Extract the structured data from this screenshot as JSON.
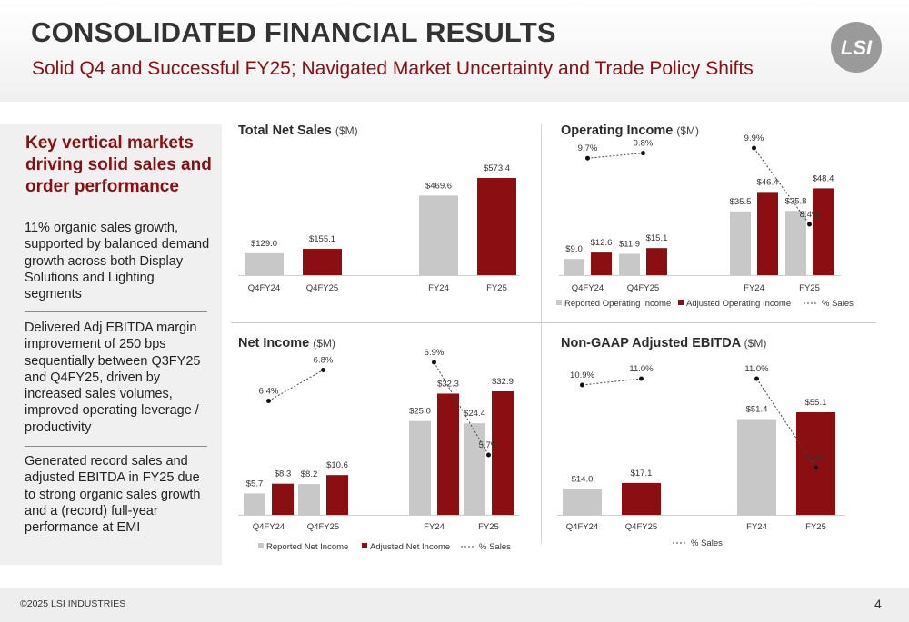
{
  "header": {
    "title": "CONSOLIDATED FINANCIAL RESULTS",
    "subtitle": "Solid Q4 and Successful FY25; Navigated Market Uncertainty and Trade Policy Shifts",
    "logo_text": "LSI"
  },
  "sidebar": {
    "heading": "Key vertical markets driving solid sales and order performance",
    "bullets": [
      "11% organic sales growth, supported by balanced demand growth across both Display Solutions and Lighting segments",
      "Delivered Adj EBITDA margin improvement of 250 bps sequentially between Q3FY25 and Q4FY25, driven by increased sales volumes, improved operating leverage / productivity",
      "Generated record sales and adjusted EBITDA in FY25 due to strong organic sales growth and a (record) full-year performance at EMI"
    ]
  },
  "colors": {
    "reported": "#c8c8c8",
    "adjusted": "#8b0e12",
    "accent": "#8b0e12",
    "label": "#444444"
  },
  "chart_titles": [
    {
      "main": "Total Net Sales",
      "unit": "($M)"
    },
    {
      "main": "Operating Income",
      "unit": "($M)"
    },
    {
      "main": "Net Income",
      "unit": "($M)"
    },
    {
      "main": "Non-GAAP Adjusted EBITDA",
      "unit": "($M)"
    }
  ],
  "chart_data": [
    {
      "type": "bar",
      "title": "Total Net Sales",
      "unit": "($M)",
      "categories": [
        "Q4FY24",
        "Q4FY25",
        "FY24",
        "FY25"
      ],
      "series": [
        {
          "values": [
            129.0,
            155.1,
            469.6,
            573.4
          ]
        }
      ],
      "bar_colors": [
        "reported",
        "adjusted",
        "reported",
        "adjusted"
      ],
      "data_labels": [
        "$129.0",
        "$155.1",
        "$469.6",
        "$573.4"
      ]
    },
    {
      "type": "bar",
      "title": "Operating Income",
      "unit": "($M)",
      "categories": [
        "Q4FY24",
        "Q4FY25",
        "FY24",
        "FY25"
      ],
      "series": [
        {
          "name": "Reported Operating Income",
          "values": [
            9.0,
            11.9,
            35.5,
            35.8
          ],
          "labels": [
            "$9.0",
            "$11.9",
            "$35.5",
            "$35.8"
          ]
        },
        {
          "name": "Adjusted Operating Income",
          "values": [
            12.6,
            15.1,
            46.4,
            48.4
          ],
          "labels": [
            "$12.6",
            "$15.1",
            "$46.4",
            "$48.4"
          ]
        },
        {
          "name": "% Sales",
          "values": [
            9.7,
            9.8,
            9.9,
            8.4
          ],
          "labels": [
            "9.7%",
            "9.8%",
            "9.9%",
            "8.4%"
          ]
        }
      ],
      "legend": [
        "Reported Operating Income",
        "Adjusted Operating Income",
        "% Sales"
      ]
    },
    {
      "type": "bar",
      "title": "Net Income",
      "unit": "($M)",
      "categories": [
        "Q4FY24",
        "Q4FY25",
        "FY24",
        "FY25"
      ],
      "series": [
        {
          "name": "Reported Net Income",
          "values": [
            5.7,
            8.2,
            25.0,
            24.4
          ],
          "labels": [
            "$5.7",
            "$8.2",
            "$25.0",
            "$24.4"
          ]
        },
        {
          "name": "Adjusted Net Income",
          "values": [
            8.3,
            10.6,
            32.3,
            32.9
          ],
          "labels": [
            "$8.3",
            "$10.6",
            "$32.3",
            "$32.9"
          ]
        },
        {
          "name": "% Sales",
          "values": [
            6.4,
            6.8,
            6.9,
            5.7
          ],
          "labels": [
            "6.4%",
            "6.8%",
            "6.9%",
            "5.7%"
          ]
        }
      ],
      "legend": [
        "Reported Net Income",
        "Adjusted Net Income",
        "% Sales"
      ]
    },
    {
      "type": "bar",
      "title": "Non-GAAP Adjusted EBITDA",
      "unit": "($M)",
      "categories": [
        "Q4FY24",
        "Q4FY25",
        "FY24",
        "FY25"
      ],
      "series": [
        {
          "values": [
            14.0,
            17.1,
            51.4,
            55.1
          ],
          "labels": [
            "$14.0",
            "$17.1",
            "$51.4",
            "$55.1"
          ]
        },
        {
          "name": "% Sales",
          "values": [
            10.9,
            11.0,
            11.0,
            9.6
          ],
          "labels": [
            "10.9%",
            "11.0%",
            "11.0%",
            "9.6%"
          ]
        }
      ],
      "bar_colors": [
        "reported",
        "adjusted",
        "reported",
        "adjusted"
      ],
      "legend": [
        "% Sales"
      ]
    }
  ],
  "footer": {
    "copyright": "©2025 LSI INDUSTRIES",
    "page": "4"
  }
}
